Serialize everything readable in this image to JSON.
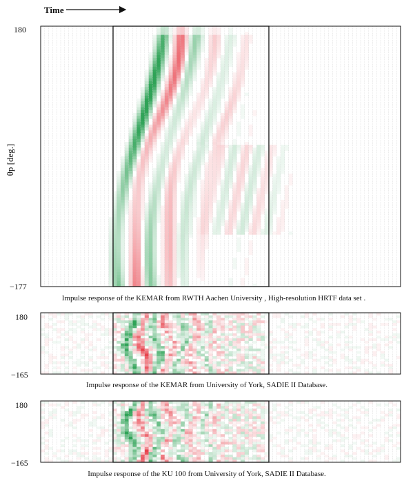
{
  "figure": {
    "time_label": "Time",
    "ylabel": "θp [deg.]"
  },
  "chart_data": [
    {
      "type": "heatmap",
      "title": "Impulse response of the KEMAR from  RWTH Aachen University , High-resolution HRTF data set .",
      "ylabel": "θp [deg.]",
      "xlabel": "Time",
      "y_ticks": [
        "180",
        "−177"
      ],
      "ylim": [
        180,
        -177
      ],
      "rows": 90,
      "cols": 90,
      "window": [
        0.235,
        0.625
      ],
      "colormap": {
        "positive": "#e8434d",
        "negative": "#2fa357",
        "zero": "#ffffff"
      },
      "grid": true
    },
    {
      "type": "heatmap",
      "title": "Impulse response of the  KEMAR from University of York, SADIE II Database.",
      "y_ticks": [
        "180",
        "−165"
      ],
      "ylim": [
        180,
        -165
      ],
      "rows": 24,
      "cols": 90,
      "window": [
        0.235,
        0.625
      ],
      "colormap": {
        "positive": "#e8434d",
        "negative": "#2fa357",
        "zero": "#ffffff"
      },
      "grid": true
    },
    {
      "type": "heatmap",
      "title": "Impulse response of the KU  100 from University of York, SADIE II Database.",
      "y_ticks": [
        "180",
        "−165"
      ],
      "ylim": [
        180,
        -165
      ],
      "rows": 24,
      "cols": 90,
      "window": [
        0.235,
        0.625
      ],
      "colormap": {
        "positive": "#e8434d",
        "negative": "#2fa357",
        "zero": "#ffffff"
      },
      "grid": true
    }
  ]
}
